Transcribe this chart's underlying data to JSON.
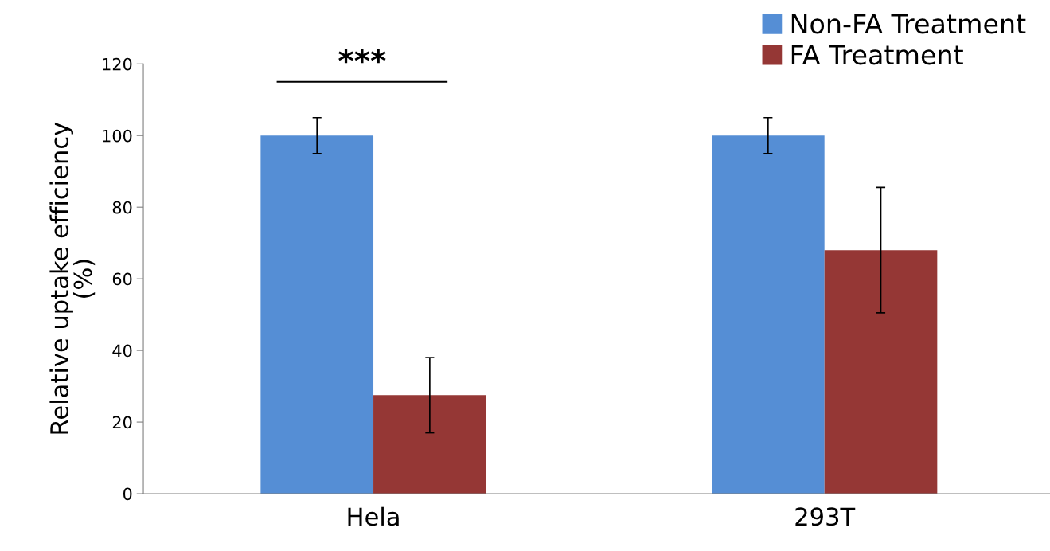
{
  "chart_data": {
    "type": "bar",
    "ylabel": "Relative uptake efficiency\n(%)",
    "categories": [
      "Hela",
      "293T"
    ],
    "series": [
      {
        "name": "Non-FA Treatment",
        "color": "#558ed5",
        "values": [
          100,
          100
        ],
        "errors": [
          5,
          5
        ]
      },
      {
        "name": "FA Treatment",
        "color": "#953735",
        "values": [
          27.5,
          68
        ],
        "errors": [
          10.5,
          17.5
        ]
      }
    ],
    "ylim": [
      0,
      120
    ],
    "yticks": [
      0,
      20,
      40,
      60,
      80,
      100,
      120
    ],
    "grid": false,
    "legend": "top right",
    "annotations": [
      "***"
    ]
  }
}
